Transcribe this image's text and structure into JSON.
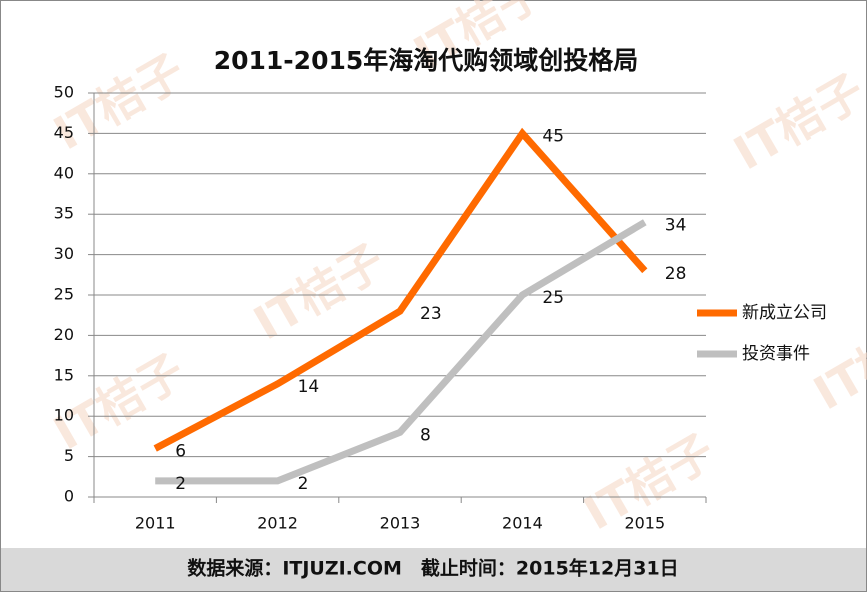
{
  "chart_data": {
    "type": "line",
    "title": "2011-2015年海淘代购领域创投格局",
    "categories": [
      "2011",
      "2012",
      "2013",
      "2014",
      "2015"
    ],
    "series": [
      {
        "name": "新成立公司",
        "color": "#ff6a00",
        "values": [
          6,
          14,
          23,
          45,
          28
        ]
      },
      {
        "name": "投资事件",
        "color": "#bfbfbf",
        "values": [
          2,
          2,
          8,
          25,
          34
        ]
      }
    ],
    "ylim": [
      0,
      50
    ],
    "yticks": [
      0,
      5,
      10,
      15,
      20,
      25,
      30,
      35,
      40,
      45,
      50
    ],
    "grid": true,
    "legend": "right",
    "footer": "数据来源：ITJUZI.COM　截止时间：2015年12月31日",
    "watermark": "IT桔子"
  }
}
